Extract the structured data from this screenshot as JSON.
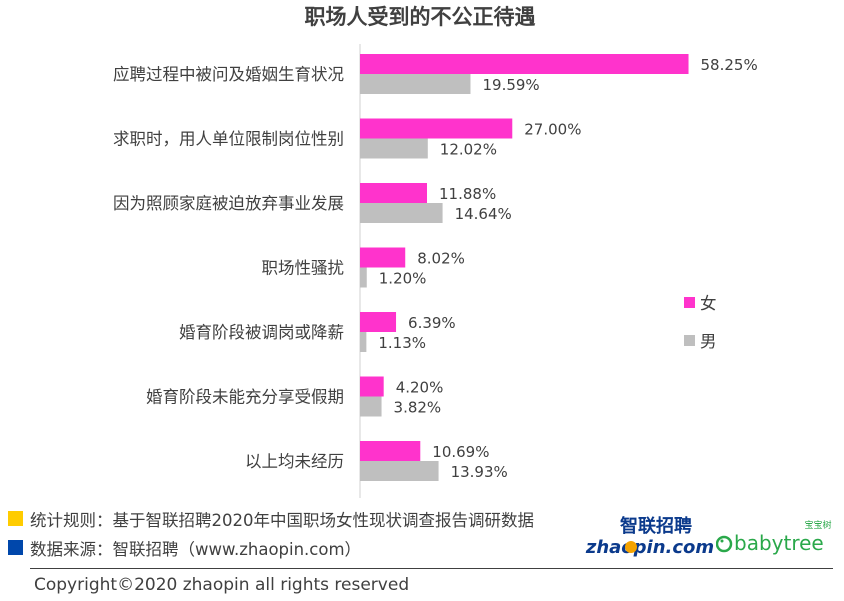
{
  "chart_data": {
    "type": "bar",
    "orientation": "horizontal",
    "title": "职场人受到的不公正待遇",
    "categories": [
      "应聘过程中被问及婚姻生育状况",
      "求职时，用人单位限制岗位性别",
      "因为照顾家庭被迫放弃事业发展",
      "职场性骚扰",
      "婚育阶段被调岗或降薪",
      "婚育阶段未能充分享受假期",
      "以上均未经历"
    ],
    "series": [
      {
        "name": "女",
        "color": "#ff33cc",
        "values": [
          58.25,
          27.0,
          11.88,
          8.02,
          6.39,
          4.2,
          10.69
        ]
      },
      {
        "name": "男",
        "color": "#bfbfbf",
        "values": [
          19.59,
          12.02,
          14.64,
          1.2,
          1.13,
          3.82,
          13.93
        ]
      }
    ],
    "value_labels": {
      "女": [
        "58.25%",
        "27.00%",
        "11.88%",
        "8.02%",
        "6.39%",
        "4.20%",
        "10.69%"
      ],
      "男": [
        "19.59%",
        "12.02%",
        "14.64%",
        "1.20%",
        "1.13%",
        "3.82%",
        "13.93%"
      ]
    },
    "xlim": [
      0,
      60
    ],
    "grid": false,
    "legend": "right"
  },
  "footer": {
    "rule_text": "统计规则：基于智联招聘2020年中国职场女性现状调查报告调研数据",
    "rule_color": "#ffcc00",
    "source_text": "数据来源：智联招聘（www.zhaopin.com）",
    "source_color": "#0047ab",
    "copyright": "Copyright©2020 zhaopin all rights reserved"
  },
  "logos": {
    "zhaopin_cn": "智联招聘",
    "zhaopin_en": "zhaopin.com",
    "babytree_cn": "宝宝树",
    "babytree_en": "babytree"
  }
}
